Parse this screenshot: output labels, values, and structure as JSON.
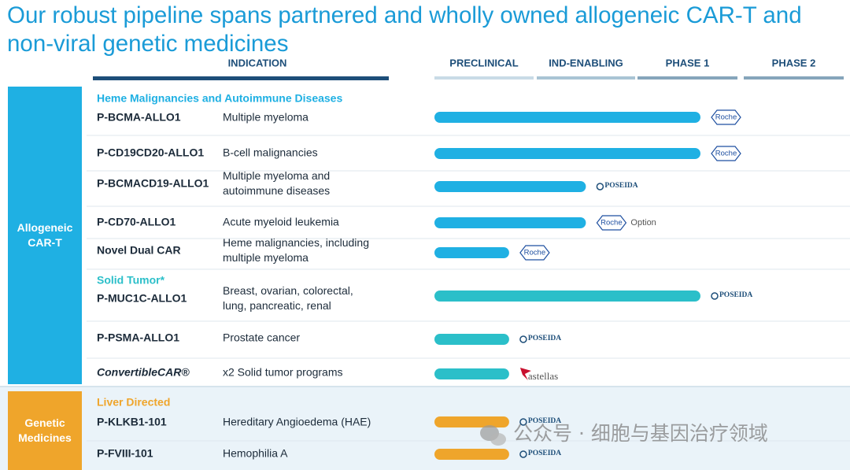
{
  "title_lines": [
    "Our robust pipeline spans partnered and wholly owned allogeneic CAR-T and",
    "non-viral genetic medicines"
  ],
  "indication_header": "INDICATION",
  "phases": [
    "PRECLINICAL",
    "IND-ENABLING",
    "PHASE 1",
    "PHASE 2"
  ],
  "xlim": [
    0,
    4
  ],
  "groups": [
    {
      "label": "Allogeneic CAR-T",
      "color": "#1fb0e3",
      "sections": [
        {
          "heading": "Heme Malignancies and Autoimmune Diseases",
          "color": "#1fb0e3",
          "programs": [
            {
              "name": "P-BCMA-ALLO1",
              "indication": [
                "Multiple myeloma"
              ],
              "progress": 2.6,
              "partner": "Roche"
            },
            {
              "name": "P-CD19CD20-ALLO1",
              "indication": [
                "B-cell malignancies"
              ],
              "progress": 2.6,
              "partner": "Roche"
            },
            {
              "name": "P-BCMACD19-ALLO1",
              "indication": [
                "Multiple myeloma and",
                "autoimmune diseases"
              ],
              "progress": 1.48,
              "partner": "POSEIDA"
            },
            {
              "name": "P-CD70-ALLO1",
              "indication": [
                "Acute myeloid leukemia"
              ],
              "progress": 1.48,
              "partner": "Roche",
              "note": "Option"
            },
            {
              "name": "Novel Dual CAR",
              "indication": [
                "Heme malignancies, including",
                "multiple myeloma"
              ],
              "progress": 0.73,
              "partner": "Roche"
            }
          ]
        },
        {
          "heading": "Solid Tumor*",
          "color": "#2bbfc9",
          "programs": [
            {
              "name": "P-MUC1C-ALLO1",
              "indication": [
                "Breast, ovarian, colorectal,",
                "lung, pancreatic, renal"
              ],
              "progress": 2.6,
              "partner": "POSEIDA"
            },
            {
              "name": "P-PSMA-ALLO1",
              "indication": [
                "Prostate cancer"
              ],
              "progress": 0.73,
              "partner": "POSEIDA"
            },
            {
              "name": "ConvertibleCAR®",
              "indication": [
                "x2 Solid tumor programs"
              ],
              "progress": 0.73,
              "partner": "astellas"
            }
          ]
        }
      ]
    },
    {
      "label": "Genetic Medicines",
      "color": "#efa52b",
      "sections": [
        {
          "heading": "Liver Directed",
          "color": "#efa52b",
          "programs": [
            {
              "name": "P-KLKB1-101",
              "indication": [
                "Hereditary Angioedema (HAE)"
              ],
              "progress": 0.73,
              "partner": "POSEIDA"
            },
            {
              "name": "P-FVIII-101",
              "indication": [
                "Hemophilia A"
              ],
              "progress": 0.73,
              "partner": "POSEIDA"
            }
          ]
        }
      ]
    }
  ],
  "watermark": "公众号 · 细胞与基因治疗领域"
}
